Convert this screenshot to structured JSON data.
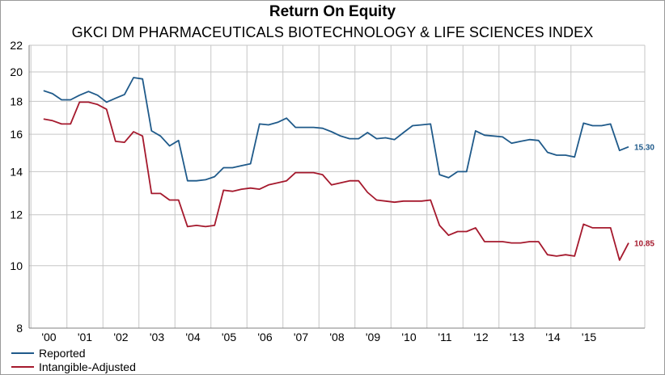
{
  "chart_data": {
    "type": "line",
    "title": "Return On Equity",
    "subtitle": "GKCI DM PHARMACEUTICALS BIOTECHNOLOGY & LIFE SCIENCES INDEX",
    "y_scale": "log",
    "ylim": [
      8,
      22
    ],
    "y_ticks": [
      8,
      10,
      12,
      14,
      16,
      18,
      20,
      22
    ],
    "x_tick_labels": [
      "'00",
      "'01",
      "'02",
      "'03",
      "'04",
      "'05",
      "'06",
      "'07",
      "'08",
      "'09",
      "'10",
      "'11",
      "'12",
      "'13",
      "'14",
      "'15"
    ],
    "xlim": [
      1999.6,
      2016.7
    ],
    "grid": true,
    "legend_position": "bottom-left",
    "series": [
      {
        "name": "Reported",
        "color": "#1f5a8a",
        "end_label": "15.30",
        "points": [
          [
            2000.0,
            18.7
          ],
          [
            2000.25,
            18.5
          ],
          [
            2000.5,
            18.1
          ],
          [
            2000.75,
            18.1
          ],
          [
            2001.0,
            18.4
          ],
          [
            2001.25,
            18.65
          ],
          [
            2001.5,
            18.4
          ],
          [
            2001.75,
            17.95
          ],
          [
            2002.0,
            18.2
          ],
          [
            2002.25,
            18.45
          ],
          [
            2002.5,
            19.6
          ],
          [
            2002.75,
            19.5
          ],
          [
            2003.0,
            16.2
          ],
          [
            2003.25,
            15.9
          ],
          [
            2003.5,
            15.35
          ],
          [
            2003.75,
            15.65
          ],
          [
            2004.0,
            13.55
          ],
          [
            2004.25,
            13.55
          ],
          [
            2004.5,
            13.6
          ],
          [
            2004.75,
            13.75
          ],
          [
            2005.0,
            14.2
          ],
          [
            2005.25,
            14.2
          ],
          [
            2005.5,
            14.3
          ],
          [
            2005.75,
            14.4
          ],
          [
            2006.0,
            16.6
          ],
          [
            2006.25,
            16.55
          ],
          [
            2006.5,
            16.7
          ],
          [
            2006.75,
            16.95
          ],
          [
            2007.0,
            16.4
          ],
          [
            2007.25,
            16.4
          ],
          [
            2007.5,
            16.4
          ],
          [
            2007.75,
            16.35
          ],
          [
            2008.0,
            16.15
          ],
          [
            2008.25,
            15.9
          ],
          [
            2008.5,
            15.75
          ],
          [
            2008.75,
            15.75
          ],
          [
            2009.0,
            16.1
          ],
          [
            2009.25,
            15.75
          ],
          [
            2009.5,
            15.8
          ],
          [
            2009.75,
            15.7
          ],
          [
            2010.0,
            16.1
          ],
          [
            2010.25,
            16.5
          ],
          [
            2010.5,
            16.55
          ],
          [
            2010.75,
            16.6
          ],
          [
            2011.0,
            13.85
          ],
          [
            2011.25,
            13.7
          ],
          [
            2011.5,
            14.0
          ],
          [
            2011.75,
            14.0
          ],
          [
            2012.0,
            16.2
          ],
          [
            2012.25,
            15.95
          ],
          [
            2012.5,
            15.9
          ],
          [
            2012.75,
            15.85
          ],
          [
            2013.0,
            15.5
          ],
          [
            2013.25,
            15.6
          ],
          [
            2013.5,
            15.7
          ],
          [
            2013.75,
            15.65
          ],
          [
            2014.0,
            15.0
          ],
          [
            2014.25,
            14.85
          ],
          [
            2014.5,
            14.85
          ],
          [
            2014.75,
            14.75
          ],
          [
            2015.0,
            16.65
          ],
          [
            2015.25,
            16.5
          ],
          [
            2015.5,
            16.5
          ],
          [
            2015.75,
            16.6
          ],
          [
            2016.0,
            15.1
          ],
          [
            2016.25,
            15.3
          ]
        ]
      },
      {
        "name": "Intangible-Adjusted",
        "color": "#a5192d",
        "end_label": "10.85",
        "points": [
          [
            2000.0,
            16.9
          ],
          [
            2000.25,
            16.8
          ],
          [
            2000.5,
            16.6
          ],
          [
            2000.75,
            16.6
          ],
          [
            2001.0,
            17.95
          ],
          [
            2001.25,
            17.95
          ],
          [
            2001.5,
            17.8
          ],
          [
            2001.75,
            17.5
          ],
          [
            2002.0,
            15.6
          ],
          [
            2002.25,
            15.55
          ],
          [
            2002.5,
            16.15
          ],
          [
            2002.75,
            15.9
          ],
          [
            2003.0,
            12.95
          ],
          [
            2003.25,
            12.95
          ],
          [
            2003.5,
            12.65
          ],
          [
            2003.75,
            12.65
          ],
          [
            2004.0,
            11.5
          ],
          [
            2004.25,
            11.55
          ],
          [
            2004.5,
            11.5
          ],
          [
            2004.75,
            11.55
          ],
          [
            2005.0,
            13.1
          ],
          [
            2005.25,
            13.05
          ],
          [
            2005.5,
            13.15
          ],
          [
            2005.75,
            13.2
          ],
          [
            2006.0,
            13.15
          ],
          [
            2006.25,
            13.35
          ],
          [
            2006.5,
            13.45
          ],
          [
            2006.75,
            13.55
          ],
          [
            2007.0,
            13.95
          ],
          [
            2007.25,
            13.95
          ],
          [
            2007.5,
            13.95
          ],
          [
            2007.75,
            13.85
          ],
          [
            2008.0,
            13.35
          ],
          [
            2008.25,
            13.45
          ],
          [
            2008.5,
            13.55
          ],
          [
            2008.75,
            13.55
          ],
          [
            2009.0,
            13.0
          ],
          [
            2009.25,
            12.65
          ],
          [
            2009.5,
            12.6
          ],
          [
            2009.75,
            12.55
          ],
          [
            2010.0,
            12.6
          ],
          [
            2010.25,
            12.6
          ],
          [
            2010.5,
            12.6
          ],
          [
            2010.75,
            12.65
          ],
          [
            2011.0,
            11.55
          ],
          [
            2011.25,
            11.15
          ],
          [
            2011.5,
            11.3
          ],
          [
            2011.75,
            11.3
          ],
          [
            2012.0,
            11.45
          ],
          [
            2012.25,
            10.9
          ],
          [
            2012.5,
            10.9
          ],
          [
            2012.75,
            10.9
          ],
          [
            2013.0,
            10.85
          ],
          [
            2013.25,
            10.85
          ],
          [
            2013.5,
            10.9
          ],
          [
            2013.75,
            10.9
          ],
          [
            2014.0,
            10.4
          ],
          [
            2014.25,
            10.35
          ],
          [
            2014.5,
            10.4
          ],
          [
            2014.75,
            10.35
          ],
          [
            2015.0,
            11.6
          ],
          [
            2015.25,
            11.45
          ],
          [
            2015.5,
            11.45
          ],
          [
            2015.75,
            11.45
          ],
          [
            2016.0,
            10.2
          ],
          [
            2016.25,
            10.85
          ]
        ]
      }
    ]
  }
}
